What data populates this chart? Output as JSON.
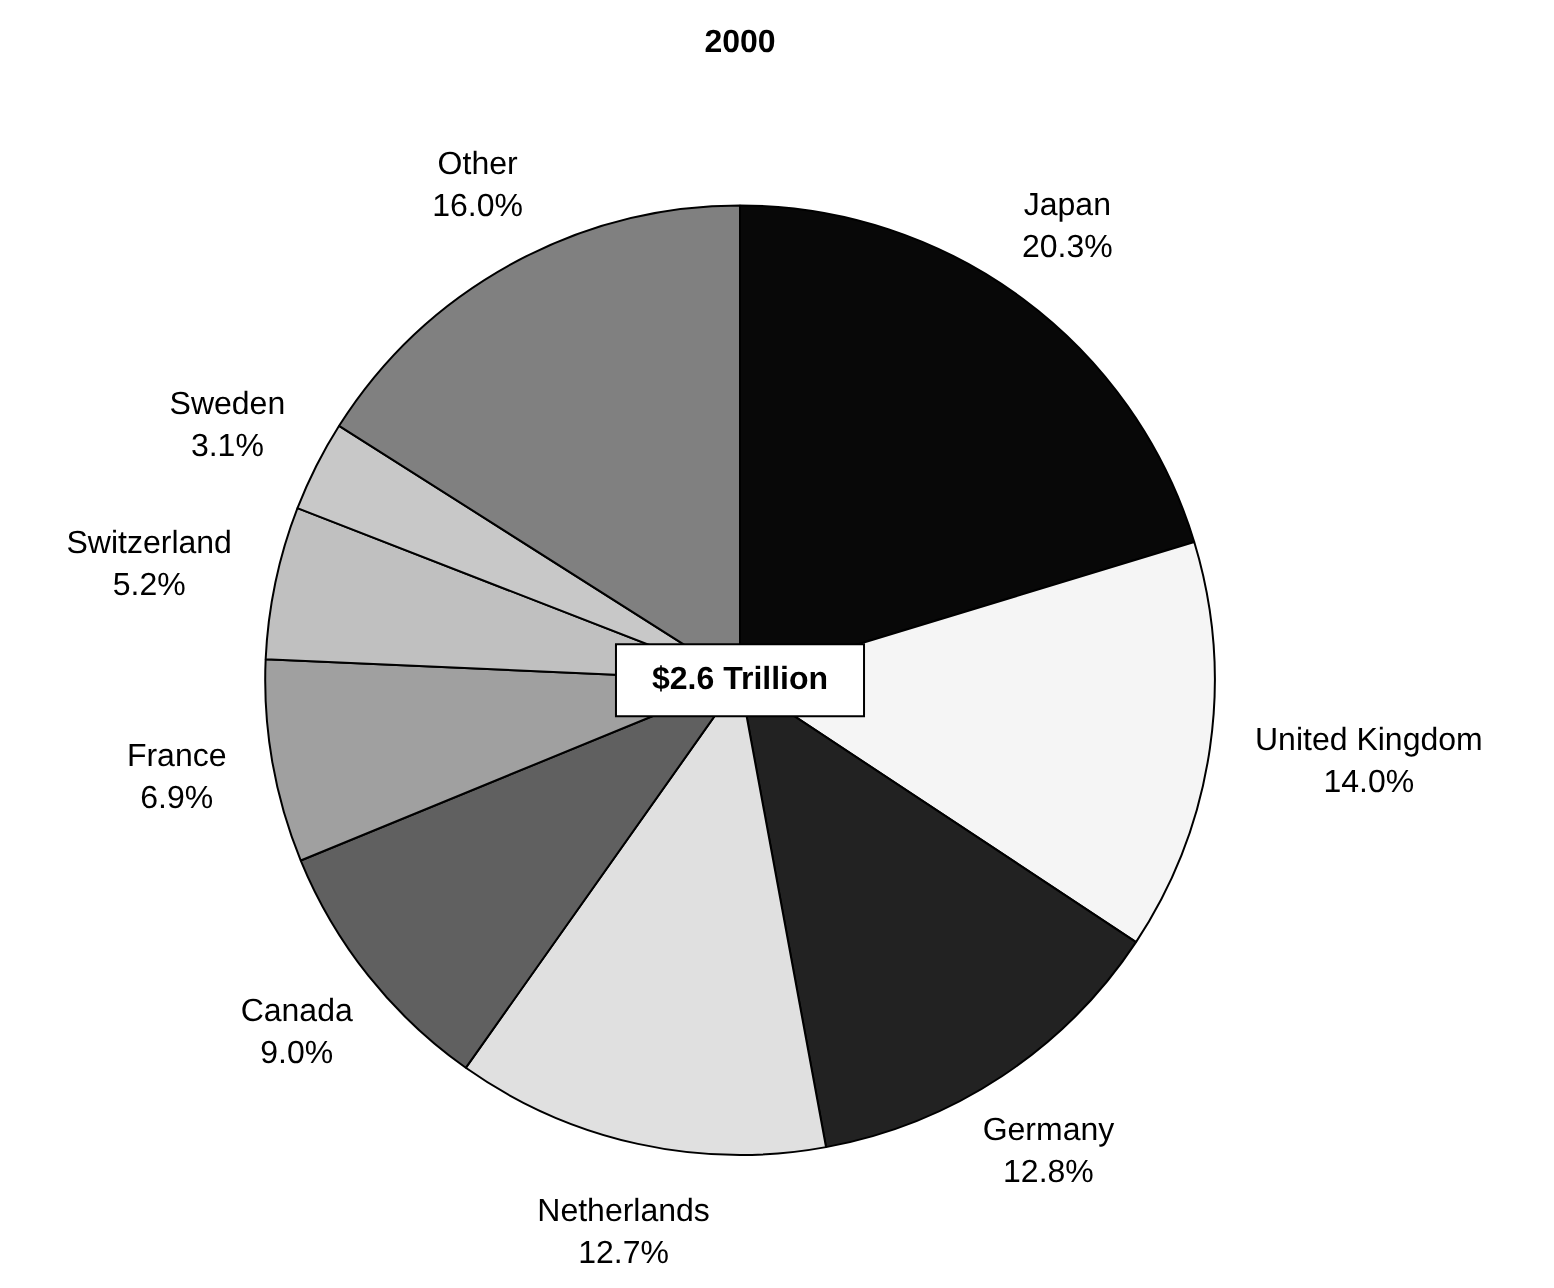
{
  "chart_data": {
    "type": "pie",
    "title": "2000",
    "categories": [
      "Japan",
      "United Kingdom",
      "Germany",
      "Netherlands",
      "Canada",
      "France",
      "Switzerland",
      "Sweden",
      "Other"
    ],
    "values": [
      20.3,
      14.0,
      12.8,
      12.7,
      9.0,
      6.9,
      5.2,
      3.1,
      16.0
    ],
    "colors": [
      "#080808",
      "#f5f5f5",
      "#222222",
      "#e0e0e0",
      "#606060",
      "#a0a0a0",
      "#c0c0c0",
      "#c8c8c8",
      "#808080"
    ],
    "value_labels": [
      "20.3%",
      "14.0%",
      "12.8%",
      "12.7%",
      "9.0%",
      "6.9%",
      "5.2%",
      "3.1%",
      "16.0%"
    ],
    "legend": false,
    "annotations": [
      "$2.6 Trillion"
    ]
  }
}
